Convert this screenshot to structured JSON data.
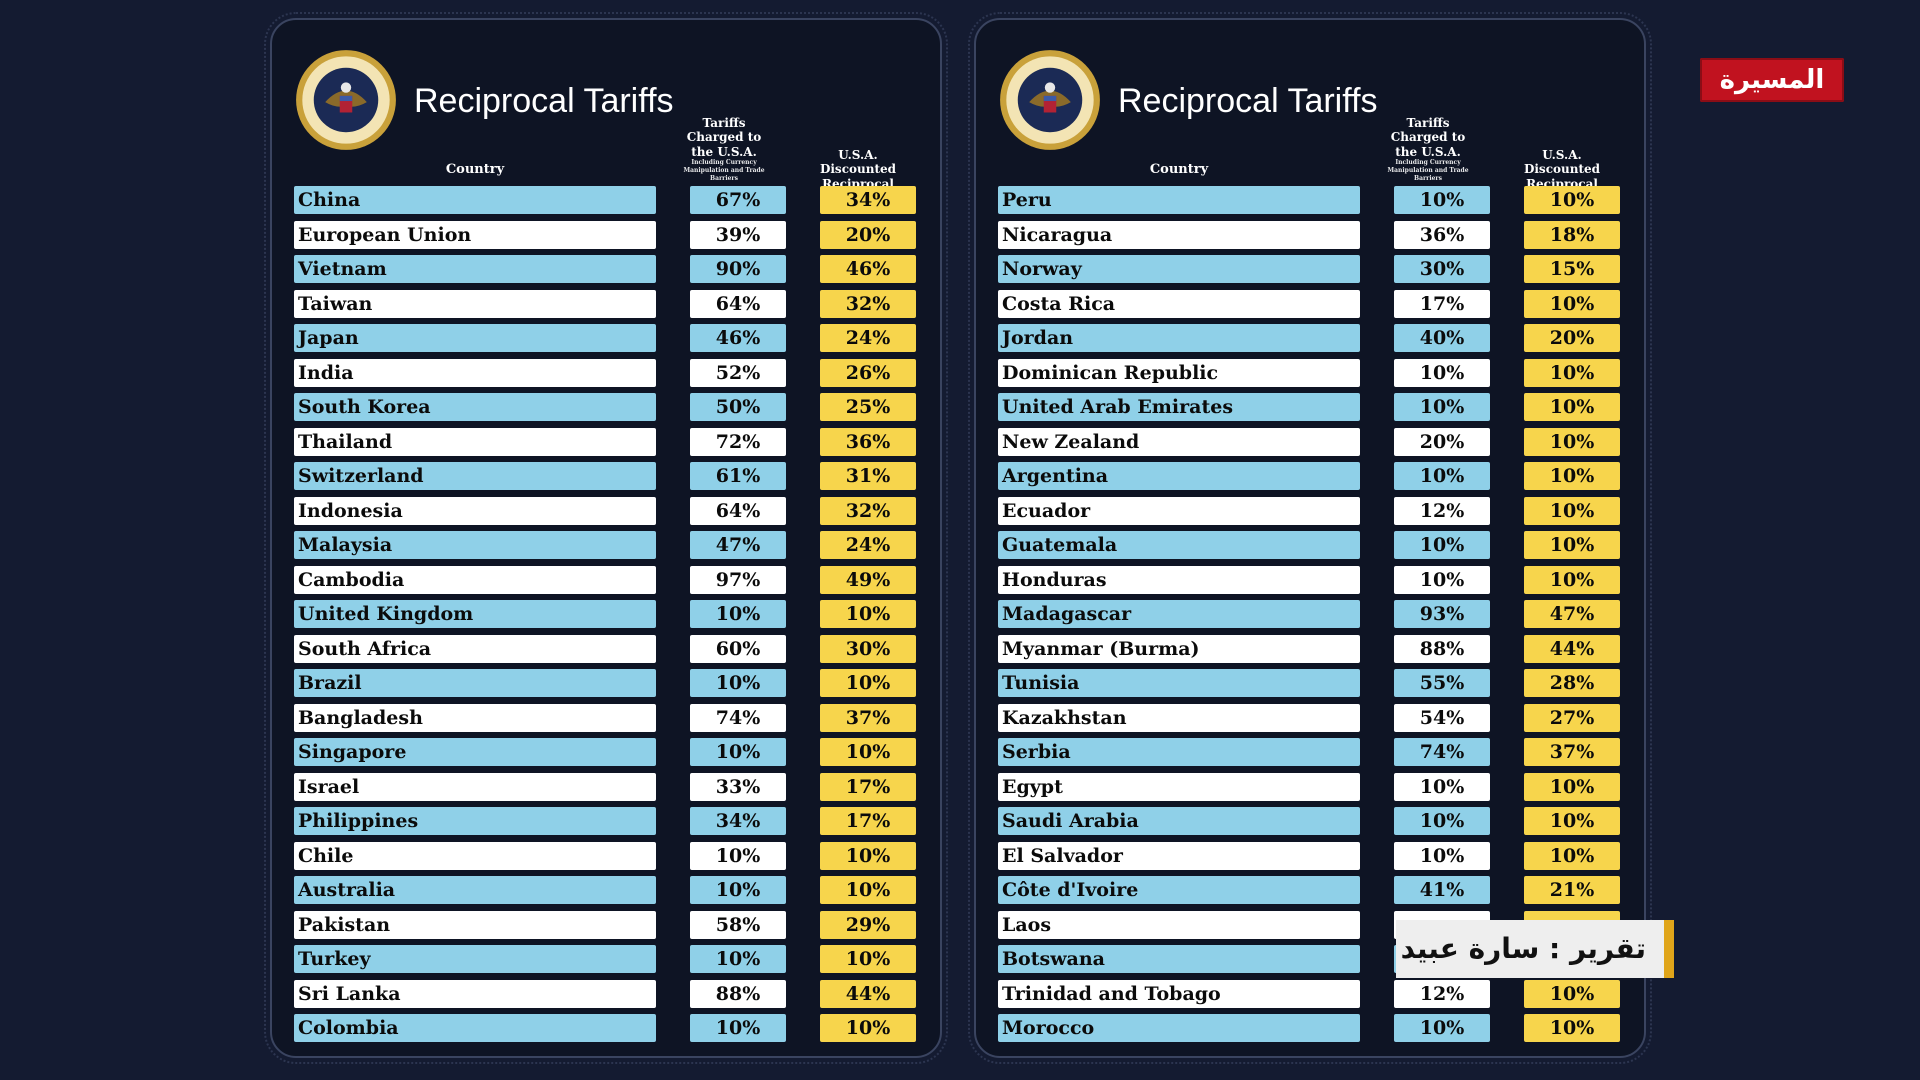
{
  "panels": [
    {
      "title": "Reciprocal Tariffs",
      "headers": {
        "country": "Country",
        "charged": "Tariffs Charged to the U.S.A.",
        "charged_sub": "Including Currency Manipulation and Trade Barriers",
        "discount": "U.S.A. Discounted Reciprocal Tariffs"
      },
      "rows": [
        {
          "country": "China",
          "charged": "67%",
          "discount": "34%"
        },
        {
          "country": "European Union",
          "charged": "39%",
          "discount": "20%"
        },
        {
          "country": "Vietnam",
          "charged": "90%",
          "discount": "46%"
        },
        {
          "country": "Taiwan",
          "charged": "64%",
          "discount": "32%"
        },
        {
          "country": "Japan",
          "charged": "46%",
          "discount": "24%"
        },
        {
          "country": "India",
          "charged": "52%",
          "discount": "26%"
        },
        {
          "country": "South Korea",
          "charged": "50%",
          "discount": "25%"
        },
        {
          "country": "Thailand",
          "charged": "72%",
          "discount": "36%"
        },
        {
          "country": "Switzerland",
          "charged": "61%",
          "discount": "31%"
        },
        {
          "country": "Indonesia",
          "charged": "64%",
          "discount": "32%"
        },
        {
          "country": "Malaysia",
          "charged": "47%",
          "discount": "24%"
        },
        {
          "country": "Cambodia",
          "charged": "97%",
          "discount": "49%"
        },
        {
          "country": "United Kingdom",
          "charged": "10%",
          "discount": "10%"
        },
        {
          "country": "South Africa",
          "charged": "60%",
          "discount": "30%"
        },
        {
          "country": "Brazil",
          "charged": "10%",
          "discount": "10%"
        },
        {
          "country": "Bangladesh",
          "charged": "74%",
          "discount": "37%"
        },
        {
          "country": "Singapore",
          "charged": "10%",
          "discount": "10%"
        },
        {
          "country": "Israel",
          "charged": "33%",
          "discount": "17%"
        },
        {
          "country": "Philippines",
          "charged": "34%",
          "discount": "17%"
        },
        {
          "country": "Chile",
          "charged": "10%",
          "discount": "10%"
        },
        {
          "country": "Australia",
          "charged": "10%",
          "discount": "10%"
        },
        {
          "country": "Pakistan",
          "charged": "58%",
          "discount": "29%"
        },
        {
          "country": "Turkey",
          "charged": "10%",
          "discount": "10%"
        },
        {
          "country": "Sri Lanka",
          "charged": "88%",
          "discount": "44%"
        },
        {
          "country": "Colombia",
          "charged": "10%",
          "discount": "10%"
        }
      ]
    },
    {
      "title": "Reciprocal Tariffs",
      "headers": {
        "country": "Country",
        "charged": "Tariffs Charged to the U.S.A.",
        "charged_sub": "Including Currency Manipulation and Trade Barriers",
        "discount": "U.S.A. Discounted Reciprocal Tariffs"
      },
      "rows": [
        {
          "country": "Peru",
          "charged": "10%",
          "discount": "10%"
        },
        {
          "country": "Nicaragua",
          "charged": "36%",
          "discount": "18%"
        },
        {
          "country": "Norway",
          "charged": "30%",
          "discount": "15%"
        },
        {
          "country": "Costa Rica",
          "charged": "17%",
          "discount": "10%"
        },
        {
          "country": "Jordan",
          "charged": "40%",
          "discount": "20%"
        },
        {
          "country": "Dominican Republic",
          "charged": "10%",
          "discount": "10%"
        },
        {
          "country": "United Arab Emirates",
          "charged": "10%",
          "discount": "10%"
        },
        {
          "country": "New Zealand",
          "charged": "20%",
          "discount": "10%"
        },
        {
          "country": "Argentina",
          "charged": "10%",
          "discount": "10%"
        },
        {
          "country": "Ecuador",
          "charged": "12%",
          "discount": "10%"
        },
        {
          "country": "Guatemala",
          "charged": "10%",
          "discount": "10%"
        },
        {
          "country": "Honduras",
          "charged": "10%",
          "discount": "10%"
        },
        {
          "country": "Madagascar",
          "charged": "93%",
          "discount": "47%"
        },
        {
          "country": "Myanmar (Burma)",
          "charged": "88%",
          "discount": "44%"
        },
        {
          "country": "Tunisia",
          "charged": "55%",
          "discount": "28%"
        },
        {
          "country": "Kazakhstan",
          "charged": "54%",
          "discount": "27%"
        },
        {
          "country": "Serbia",
          "charged": "74%",
          "discount": "37%"
        },
        {
          "country": "Egypt",
          "charged": "10%",
          "discount": "10%"
        },
        {
          "country": "Saudi Arabia",
          "charged": "10%",
          "discount": "10%"
        },
        {
          "country": "El Salvador",
          "charged": "10%",
          "discount": "10%"
        },
        {
          "country": "Côte d'Ivoire",
          "charged": "41%",
          "discount": "21%"
        },
        {
          "country": "Laos",
          "charged": "",
          "discount": ""
        },
        {
          "country": "Botswana",
          "charged": "",
          "discount": ""
        },
        {
          "country": "Trinidad and Tobago",
          "charged": "12%",
          "discount": "10%"
        },
        {
          "country": "Morocco",
          "charged": "10%",
          "discount": "10%"
        }
      ]
    }
  ],
  "logo": {
    "text": "المسيرة",
    "color": "#c1121f"
  },
  "caption": {
    "text": "تقرير : سارة عبيد",
    "accent": "#e0a51a"
  },
  "colors": {
    "background": "#141b31",
    "row_blue": "#8fd0e8",
    "row_white": "#ffffff",
    "discount_yellow": "#f7d54c"
  },
  "icons": {
    "seal": "presidential-seal-icon"
  }
}
